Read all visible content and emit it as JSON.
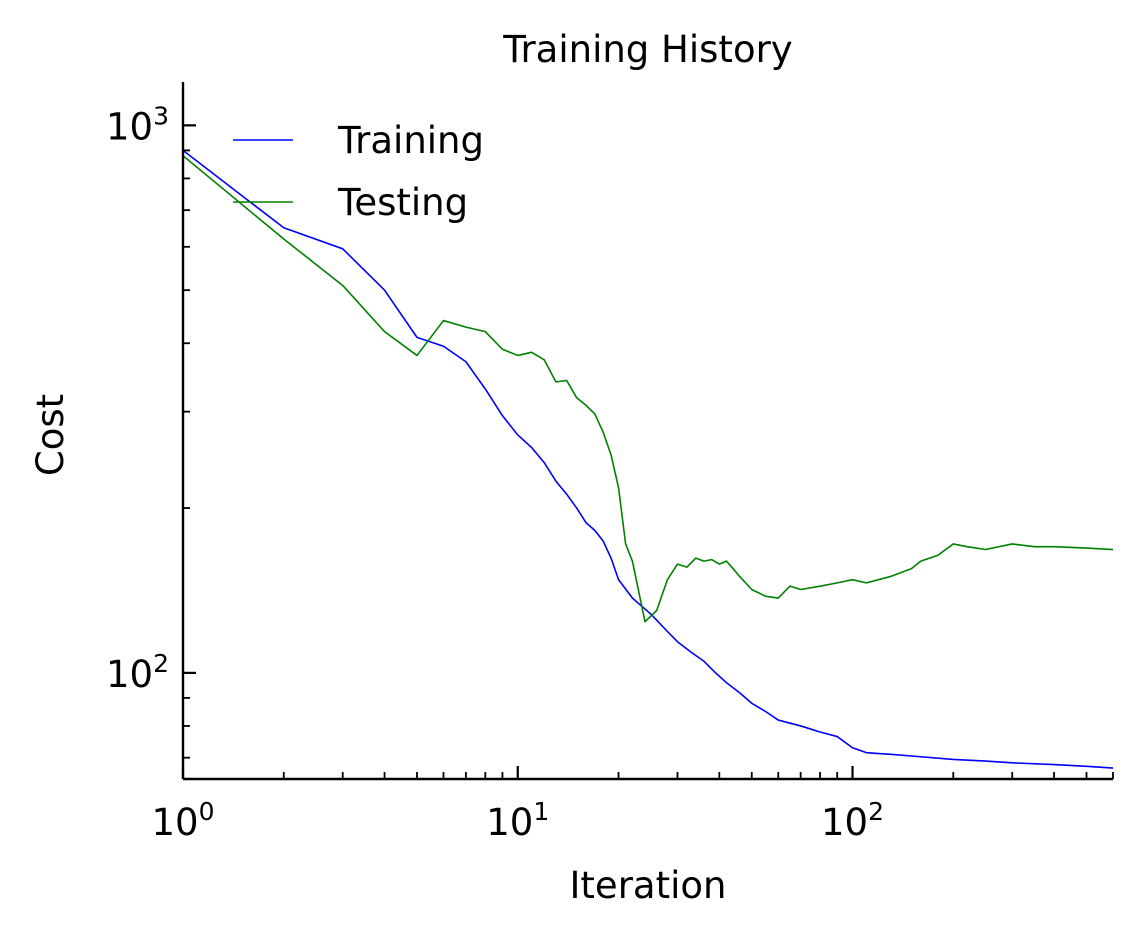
{
  "chart_data": {
    "type": "line",
    "title": "Training History",
    "xlabel": "Iteration",
    "ylabel": "Cost",
    "xscale": "log",
    "yscale": "log",
    "xlim": [
      1,
      600
    ],
    "ylim": [
      64,
      1200
    ],
    "grid": false,
    "legend": {
      "placement": "top-left"
    },
    "x_ticks": [
      {
        "value": 1,
        "base": "10",
        "exp": "0"
      },
      {
        "value": 10,
        "base": "10",
        "exp": "1"
      },
      {
        "value": 100,
        "base": "10",
        "exp": "2"
      }
    ],
    "y_ticks": [
      {
        "value": 100,
        "base": "10",
        "exp": "2"
      },
      {
        "value": 1000,
        "base": "10",
        "exp": "3"
      }
    ],
    "series": [
      {
        "name": "Training",
        "color": "#0000ff",
        "points": [
          [
            1,
            900
          ],
          [
            2,
            650
          ],
          [
            3,
            595
          ],
          [
            4,
            500
          ],
          [
            5,
            410
          ],
          [
            6,
            395
          ],
          [
            7,
            370
          ],
          [
            8,
            330
          ],
          [
            9,
            295
          ],
          [
            10,
            272
          ],
          [
            11,
            258
          ],
          [
            12,
            242
          ],
          [
            13,
            224
          ],
          [
            14,
            212
          ],
          [
            15,
            200
          ],
          [
            16,
            188
          ],
          [
            17,
            182
          ],
          [
            18,
            174
          ],
          [
            19,
            162
          ],
          [
            20,
            148
          ],
          [
            22,
            137
          ],
          [
            25,
            128
          ],
          [
            28,
            119
          ],
          [
            30,
            114
          ],
          [
            33,
            109
          ],
          [
            36,
            105
          ],
          [
            39,
            100
          ],
          [
            42,
            96
          ],
          [
            46,
            92
          ],
          [
            50,
            88
          ],
          [
            55,
            85
          ],
          [
            60,
            82
          ],
          [
            70,
            80
          ],
          [
            80,
            78
          ],
          [
            90,
            76.5
          ],
          [
            100,
            73
          ],
          [
            110,
            71.5
          ],
          [
            130,
            71
          ],
          [
            150,
            70.5
          ],
          [
            200,
            69.5
          ],
          [
            250,
            69
          ],
          [
            300,
            68.5
          ],
          [
            400,
            68
          ],
          [
            500,
            67.5
          ],
          [
            600,
            67
          ]
        ]
      },
      {
        "name": "Testing",
        "color": "#008000",
        "points": [
          [
            1,
            880
          ],
          [
            2,
            620
          ],
          [
            3,
            510
          ],
          [
            4,
            420
          ],
          [
            5,
            380
          ],
          [
            6,
            440
          ],
          [
            7,
            428
          ],
          [
            8,
            420
          ],
          [
            9,
            390
          ],
          [
            10,
            380
          ],
          [
            11,
            385
          ],
          [
            12,
            373
          ],
          [
            13,
            340
          ],
          [
            14,
            342
          ],
          [
            15,
            318
          ],
          [
            16,
            308
          ],
          [
            17,
            297
          ],
          [
            18,
            275
          ],
          [
            19,
            250
          ],
          [
            20,
            218
          ],
          [
            21,
            172
          ],
          [
            22,
            160
          ],
          [
            24,
            124
          ],
          [
            26,
            130
          ],
          [
            28,
            148
          ],
          [
            30,
            158
          ],
          [
            32,
            156
          ],
          [
            34,
            162
          ],
          [
            36,
            160
          ],
          [
            38,
            161
          ],
          [
            40,
            158
          ],
          [
            42,
            160
          ],
          [
            44,
            155
          ],
          [
            46,
            150
          ],
          [
            50,
            142
          ],
          [
            55,
            138
          ],
          [
            60,
            137
          ],
          [
            65,
            144
          ],
          [
            70,
            142
          ],
          [
            80,
            144
          ],
          [
            90,
            146
          ],
          [
            100,
            148
          ],
          [
            110,
            146
          ],
          [
            130,
            150
          ],
          [
            150,
            155
          ],
          [
            160,
            160
          ],
          [
            180,
            164
          ],
          [
            200,
            172
          ],
          [
            220,
            170
          ],
          [
            250,
            168
          ],
          [
            300,
            172
          ],
          [
            350,
            170
          ],
          [
            400,
            170
          ],
          [
            500,
            169
          ],
          [
            600,
            168
          ]
        ]
      }
    ]
  }
}
